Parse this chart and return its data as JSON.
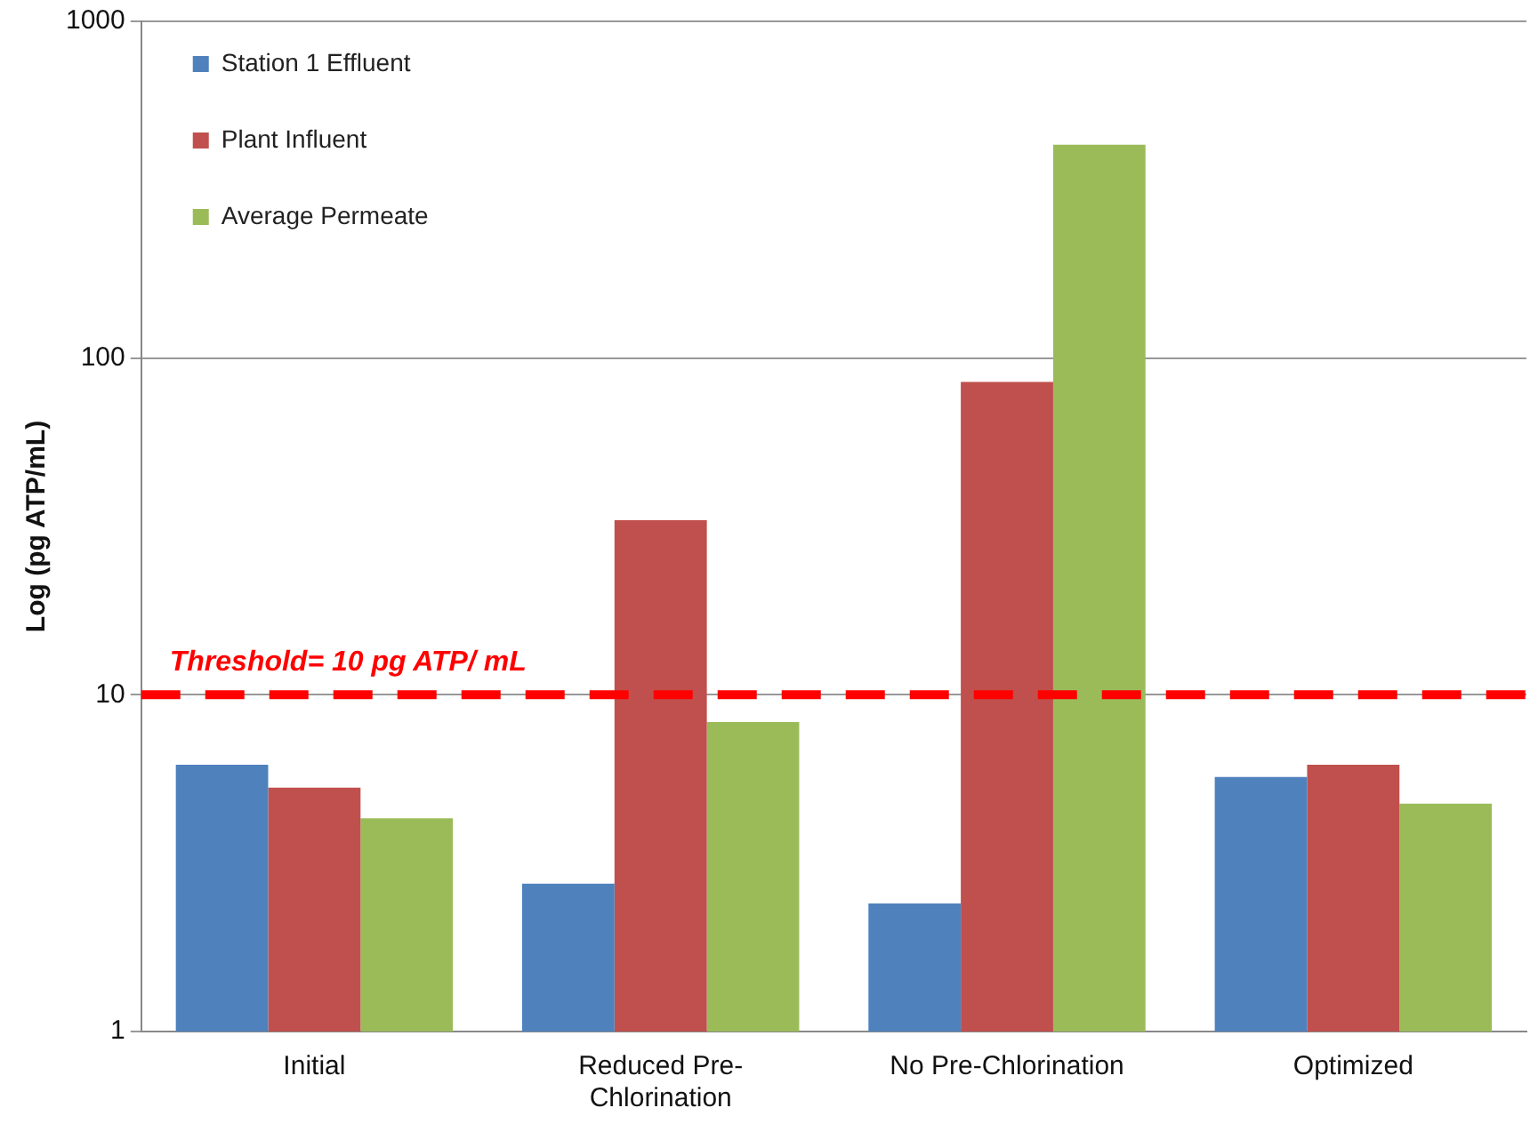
{
  "chart_data": {
    "type": "bar",
    "ylabel": "Log (pg ATP/mL)",
    "categories": [
      "Initial",
      "Reduced Pre-Chlorination",
      "No Pre-Chlorination",
      "Optimized"
    ],
    "series": [
      {
        "name": "Station 1 Effluent",
        "color": "#4f81bd",
        "values": [
          6.2,
          2.75,
          2.4,
          5.7
        ]
      },
      {
        "name": "Plant Influent",
        "color": "#c0504d",
        "values": [
          5.3,
          33,
          85,
          6.2
        ]
      },
      {
        "name": "Average Permeate",
        "color": "#9bbb59",
        "values": [
          4.3,
          8.3,
          430,
          4.75
        ]
      }
    ],
    "log": "y",
    "ylim": [
      1,
      1000
    ],
    "yticks": [
      1,
      10,
      100,
      1000
    ],
    "grid": "y",
    "legend": "top left",
    "ref_lines": [
      {
        "axis": "y",
        "value": 10,
        "label": "Threshold= 10 pg ATP/ mL",
        "color": "#ff0000",
        "line_style": "dashed"
      }
    ]
  }
}
